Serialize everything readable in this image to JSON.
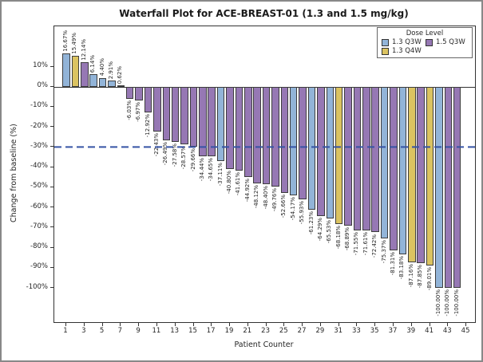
{
  "figure": {
    "title": "Waterfall Plot for ACE-BREAST-01 (1.3 and 1.5 mg/kg)",
    "xlabel": "Patient Counter",
    "ylabel": "Change from baseline (%)"
  },
  "legend": {
    "title": "Dose Level",
    "items": [
      {
        "label": "1.3 Q3W",
        "color": "#92b4d8"
      },
      {
        "label": "1.5 Q3W",
        "color": "#9678b4"
      },
      {
        "label": "1.3 Q4W",
        "color": "#dbc361"
      }
    ]
  },
  "chart_data": {
    "type": "bar",
    "title": "Waterfall Plot for ACE-BREAST-01 (1.3 and 1.5 mg/kg)",
    "xlabel": "Patient Counter",
    "ylabel": "Change from baseline (%)",
    "ylim": [
      -117,
      30
    ],
    "xlim": [
      -0.3,
      46
    ],
    "grid": false,
    "legend_position": "upper right",
    "yticks": [
      10,
      0,
      -10,
      -20,
      -30,
      -40,
      -50,
      -60,
      -70,
      -80,
      -90,
      -100
    ],
    "xticks": [
      1,
      3,
      5,
      7,
      9,
      11,
      13,
      15,
      17,
      19,
      21,
      23,
      25,
      27,
      29,
      31,
      33,
      35,
      37,
      39,
      41,
      43,
      45
    ],
    "reference_line": {
      "y": -30,
      "color": "#3653a5",
      "style": "dashed"
    },
    "bar_edge_color": "#3d3d3d",
    "bars": [
      {
        "patient": 1,
        "value": 16.67,
        "label": "16.67%",
        "dose": "1.3 Q3W"
      },
      {
        "patient": 2,
        "value": 15.49,
        "label": "15.49%",
        "dose": "1.3 Q4W"
      },
      {
        "patient": 3,
        "value": 12.14,
        "label": "12.14%",
        "dose": "1.5 Q3W"
      },
      {
        "patient": 4,
        "value": 6.14,
        "label": "6.14%",
        "dose": "1.3 Q3W"
      },
      {
        "patient": 5,
        "value": 4.4,
        "label": "4.40%",
        "dose": "1.3 Q3W"
      },
      {
        "patient": 6,
        "value": 2.91,
        "label": "2.91%",
        "dose": "1.3 Q3W"
      },
      {
        "patient": 7,
        "value": 0.62,
        "label": "0.62%",
        "dose": "1.3 Q3W"
      },
      {
        "patient": 8,
        "value": -6.03,
        "label": "-6.03%",
        "dose": "1.5 Q3W"
      },
      {
        "patient": 9,
        "value": -6.97,
        "label": "-6.97%",
        "dose": "1.5 Q3W"
      },
      {
        "patient": 10,
        "value": -12.92,
        "label": "-12.92%",
        "dose": "1.5 Q3W"
      },
      {
        "patient": 11,
        "value": -22.43,
        "label": "-22.43%",
        "dose": "1.5 Q3W"
      },
      {
        "patient": 12,
        "value": -26.49,
        "label": "-26.49%",
        "dose": "1.5 Q3W"
      },
      {
        "patient": 13,
        "value": -27.58,
        "label": "-27.58%",
        "dose": "1.5 Q3W"
      },
      {
        "patient": 14,
        "value": -28.57,
        "label": "-28.57%",
        "dose": "1.5 Q3W"
      },
      {
        "patient": 15,
        "value": -29.66,
        "label": "-29.66%",
        "dose": "1.5 Q3W"
      },
      {
        "patient": 16,
        "value": -34.44,
        "label": "-34.44%",
        "dose": "1.5 Q3W"
      },
      {
        "patient": 17,
        "value": -34.65,
        "label": "-34.65%",
        "dose": "1.5 Q3W"
      },
      {
        "patient": 18,
        "value": -37.11,
        "label": "-37.11%",
        "dose": "1.3 Q3W"
      },
      {
        "patient": 19,
        "value": -40.8,
        "label": "-40.80%",
        "dose": "1.5 Q3W"
      },
      {
        "patient": 20,
        "value": -41.61,
        "label": "-41.61%",
        "dose": "1.5 Q3W"
      },
      {
        "patient": 21,
        "value": -44.92,
        "label": "-44.92%",
        "dose": "1.5 Q3W"
      },
      {
        "patient": 22,
        "value": -48.12,
        "label": "-48.12%",
        "dose": "1.5 Q3W"
      },
      {
        "patient": 23,
        "value": -48.4,
        "label": "-48.40%",
        "dose": "1.5 Q3W"
      },
      {
        "patient": 24,
        "value": -49.76,
        "label": "-49.76%",
        "dose": "1.5 Q3W"
      },
      {
        "patient": 25,
        "value": -52.66,
        "label": "-52.66%",
        "dose": "1.5 Q3W"
      },
      {
        "patient": 26,
        "value": -54.17,
        "label": "-54.17%",
        "dose": "1.3 Q3W"
      },
      {
        "patient": 27,
        "value": -55.93,
        "label": "-55.93%",
        "dose": "1.5 Q3W"
      },
      {
        "patient": 28,
        "value": -61.23,
        "label": "-61.23%",
        "dose": "1.3 Q3W"
      },
      {
        "patient": 29,
        "value": -64.29,
        "label": "-64.29%",
        "dose": "1.5 Q3W"
      },
      {
        "patient": 30,
        "value": -65.53,
        "label": "-65.53%",
        "dose": "1.3 Q3W"
      },
      {
        "patient": 31,
        "value": -68.18,
        "label": "-68.18%",
        "dose": "1.3 Q4W"
      },
      {
        "patient": 32,
        "value": -68.89,
        "label": "-68.89%",
        "dose": "1.5 Q3W"
      },
      {
        "patient": 33,
        "value": -71.55,
        "label": "-71.55%",
        "dose": "1.5 Q3W"
      },
      {
        "patient": 34,
        "value": -71.61,
        "label": "-71.61%",
        "dose": "1.5 Q3W"
      },
      {
        "patient": 35,
        "value": -72.42,
        "label": "-72.42%",
        "dose": "1.5 Q3W"
      },
      {
        "patient": 36,
        "value": -75.37,
        "label": "-75.37%",
        "dose": "1.3 Q3W"
      },
      {
        "patient": 37,
        "value": -81.31,
        "label": "-81.31%",
        "dose": "1.5 Q3W"
      },
      {
        "patient": 38,
        "value": -83.18,
        "label": "-83.18%",
        "dose": "1.3 Q3W"
      },
      {
        "patient": 39,
        "value": -87.16,
        "label": "-87.16%",
        "dose": "1.3 Q4W"
      },
      {
        "patient": 40,
        "value": -87.85,
        "label": "-87.85%",
        "dose": "1.5 Q3W"
      },
      {
        "patient": 41,
        "value": -89.01,
        "label": "-89.01%",
        "dose": "1.3 Q4W"
      },
      {
        "patient": 42,
        "value": -100.0,
        "label": "-100.00%",
        "dose": "1.3 Q3W"
      },
      {
        "patient": 43,
        "value": -100.0,
        "label": "-100.00%",
        "dose": "1.5 Q3W"
      },
      {
        "patient": 44,
        "value": -100.0,
        "label": "-100.00%",
        "dose": "1.5 Q3W"
      }
    ]
  }
}
